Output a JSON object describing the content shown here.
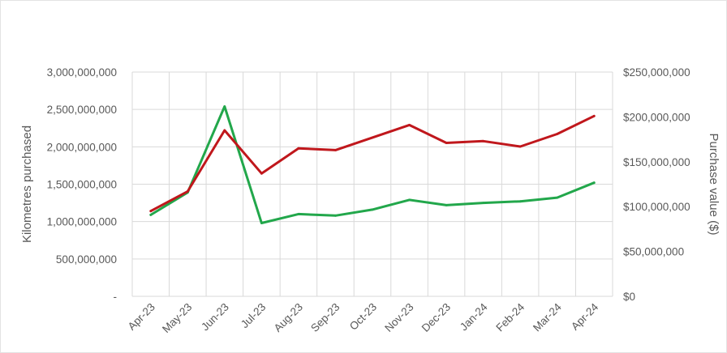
{
  "chart_data": {
    "type": "line",
    "categories": [
      "Apr-23",
      "May-23",
      "Jun-23",
      "Jul-23",
      "Aug-23",
      "Sep-23",
      "Oct-23",
      "Nov-23",
      "Dec-23",
      "Jan-24",
      "Feb-24",
      "Mar-24",
      "Apr-24"
    ],
    "y_left": {
      "label": "Kilometres purchased",
      "range": [
        0,
        3000000000
      ],
      "ticks": [
        "-",
        "500,000,000",
        "1,000,000,000",
        "1,500,000,000",
        "2,000,000,000",
        "2,500,000,000",
        "3,000,000,000"
      ]
    },
    "y_right": {
      "label": "Purchase value ($)",
      "range": [
        0,
        250000000
      ],
      "ticks": [
        "$0",
        "$50,000,000",
        "$100,000,000",
        "$150,000,000",
        "$200,000,000",
        "$250,000,000"
      ]
    },
    "series": [
      {
        "axis": "left",
        "color": "#22a74b",
        "values": [
          1090000000,
          1390000000,
          2540000000,
          980000000,
          1100000000,
          1080000000,
          1160000000,
          1290000000,
          1220000000,
          1250000000,
          1270000000,
          1320000000,
          1520000000
        ]
      },
      {
        "axis": "right",
        "color": "#c0171c",
        "values": [
          95000000,
          117000000,
          185000000,
          137000000,
          165000000,
          163000000,
          177000000,
          191000000,
          171000000,
          173000000,
          167000000,
          181000000,
          201000000
        ]
      }
    ],
    "grid": true,
    "legend": "none"
  }
}
